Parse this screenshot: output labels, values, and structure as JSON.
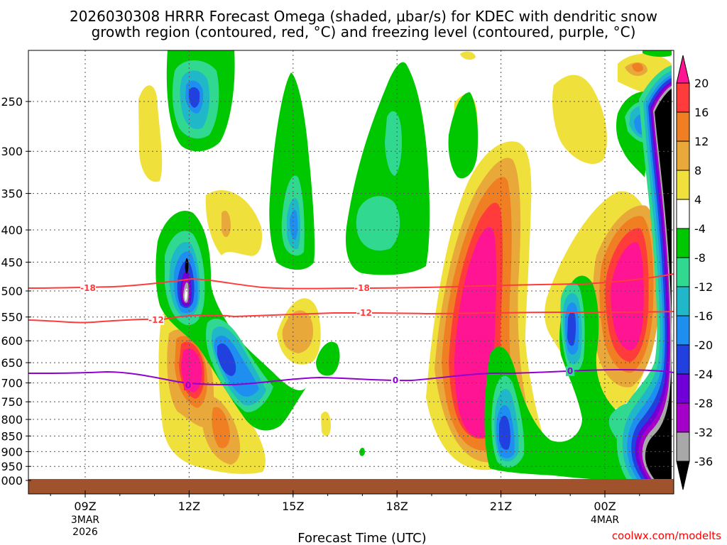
{
  "chart_data": {
    "type": "heatmap",
    "title_line1": "2026030308 HRRR Forecast Omega (shaded, μbar/s) for KDEC with dendritic snow",
    "title_line2": "growth region (contoured, red, °C) and freezing level (contoured, purple, °C)",
    "xlabel": "Forecast Time (UTC)",
    "credit": "coolwx.com/modelts",
    "x_range_hours": [
      8,
      26
    ],
    "y_range_mb": [
      200,
      1010
    ],
    "y_ticks": [
      {
        "label": "250",
        "p": 250
      },
      {
        "label": "300",
        "p": 300
      },
      {
        "label": "350",
        "p": 350
      },
      {
        "label": "400",
        "p": 400
      },
      {
        "label": "450",
        "p": 450
      },
      {
        "label": "500",
        "p": 500
      },
      {
        "label": "550",
        "p": 550
      },
      {
        "label": "600",
        "p": 600
      },
      {
        "label": "650",
        "p": 650
      },
      {
        "label": "700",
        "p": 700
      },
      {
        "label": "750",
        "p": 750
      },
      {
        "label": "800",
        "p": 800
      },
      {
        "label": "850",
        "p": 850
      },
      {
        "label": "900",
        "p": 900
      },
      {
        "label": "950",
        "p": 950
      },
      {
        "label": "1000",
        "p": 1000
      }
    ],
    "x_ticks": [
      {
        "label": "09Z",
        "date": "3MAR",
        "year": "2026",
        "h": 9
      },
      {
        "label": "12Z",
        "h": 12
      },
      {
        "label": "15Z",
        "h": 15
      },
      {
        "label": "18Z",
        "h": 18
      },
      {
        "label": "21Z",
        "h": 21
      },
      {
        "label": "00Z",
        "date": "4MAR",
        "h": 24
      }
    ],
    "colorbar": {
      "labels": [
        "20",
        "16",
        "12",
        "8",
        "4",
        "-4",
        "-8",
        "-12",
        "-16",
        "-20",
        "-24",
        "-28",
        "-32",
        "-36"
      ],
      "colors": [
        "#ff1493",
        "#ff3b3b",
        "#f07e23",
        "#e8a93a",
        "#f0e03c",
        "#ffffff",
        "#00c800",
        "#30d890",
        "#20b8c8",
        "#1e8ff0",
        "#2040e0",
        "#7000d8",
        "#a400c8",
        "#a8a8a8",
        "#000000"
      ]
    },
    "omega_features": [
      {
        "name": "ascent-core-450",
        "h": 12.0,
        "p": 450,
        "value": -36
      },
      {
        "name": "ascent-core-250",
        "h": 12.1,
        "p": 250,
        "value": -16
      },
      {
        "name": "ascent-core-620",
        "h": 13.1,
        "p": 615,
        "value": -22
      },
      {
        "name": "ascent-core-400",
        "h": 15.0,
        "p": 410,
        "value": -16
      },
      {
        "name": "ascent-core-850",
        "h": 21.0,
        "p": 840,
        "value": -22
      },
      {
        "name": "ascent-core-580",
        "h": 23.0,
        "p": 580,
        "value": -18
      },
      {
        "name": "subsidence-core-620",
        "h": 12.0,
        "p": 625,
        "value": 20
      },
      {
        "name": "subsidence-core-800",
        "h": 13.0,
        "p": 800,
        "value": 14
      },
      {
        "name": "subsidence-core-580",
        "h": 15.1,
        "p": 575,
        "value": 10
      },
      {
        "name": "subsidence-core-550",
        "h": 19.9,
        "p": 560,
        "value": 22
      },
      {
        "name": "subsidence-core-440",
        "h": 24.8,
        "p": 440,
        "value": 22
      },
      {
        "name": "black-region-right",
        "h": 25.8,
        "p": 600,
        "value": -40
      }
    ],
    "contours": [
      {
        "name": "dgz-minus18",
        "label": "-18",
        "color": "#ff3b3b",
        "level_mb": 493
      },
      {
        "name": "dgz-minus12",
        "label": "-12",
        "color": "#ff3b3b",
        "level_mb": 545
      },
      {
        "name": "freezing-level",
        "label": "0",
        "color": "#9000d0",
        "level_mb": 690
      }
    ]
  }
}
